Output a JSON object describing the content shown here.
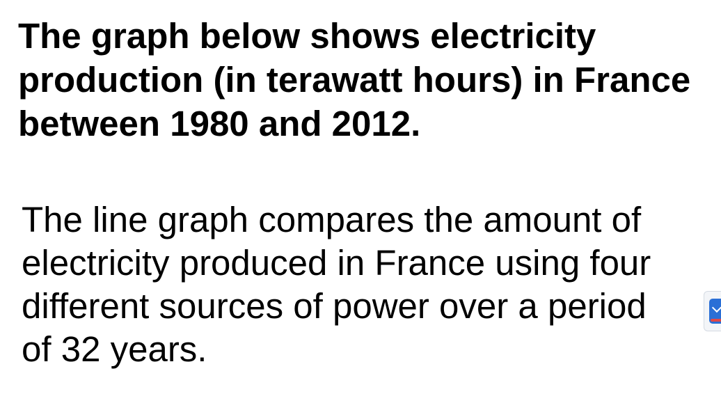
{
  "question": {
    "lines": [
      "The graph below shows electricity",
      "production (in terawatt hours) in France",
      "between 1980 and 2012."
    ]
  },
  "answer": {
    "lines": [
      "The line graph compares the amount of",
      "electricity produced in France using four",
      "different sources of power over a period",
      "of 32 years."
    ]
  },
  "side_widget": {
    "icon": "download-icon",
    "accent_color": "#2a6fd6"
  }
}
